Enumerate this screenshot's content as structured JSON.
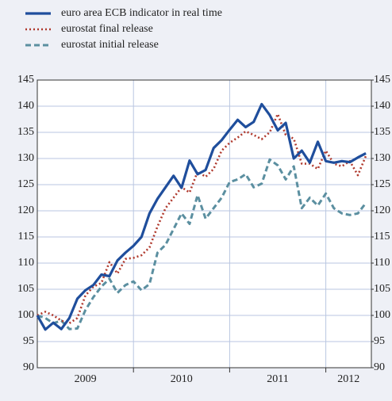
{
  "chart_data": {
    "type": "line",
    "categories": [
      null,
      null,
      null,
      null,
      null,
      null,
      null,
      null,
      null,
      null,
      null,
      null,
      null,
      null,
      null,
      null,
      null,
      null,
      null,
      null,
      null,
      null,
      null,
      null,
      null,
      null,
      null,
      null,
      null,
      null,
      null,
      null,
      null,
      null,
      null,
      null,
      null,
      null,
      null,
      null,
      null,
      null
    ],
    "year_labels": [
      "2009",
      "2010",
      "2011",
      "2012"
    ],
    "series": [
      {
        "name": "euro area ECB indicator in real time",
        "color": "#1f4e9c",
        "dash": "solid",
        "values": [
          100,
          97.3,
          98.6,
          97.4,
          99.5,
          103.2,
          104.8,
          105.8,
          107.8,
          107.5,
          110.5,
          112,
          113.3,
          115,
          119.5,
          122.3,
          124.5,
          126.7,
          124.4,
          129.6,
          127,
          127.8,
          132,
          133.5,
          135.5,
          137.4,
          136,
          137,
          140.4,
          138.3,
          135.4,
          136.8,
          130,
          131.5,
          129.2,
          133.2,
          129.5,
          129.2,
          129.5,
          129.3,
          130.2,
          131
        ]
      },
      {
        "name": "eurostat final release",
        "color": "#b03a2e",
        "dash": "dotted",
        "values": [
          100,
          100.7,
          100,
          99,
          98.5,
          99.5,
          103.8,
          105.5,
          106.2,
          110.2,
          108,
          110.8,
          111,
          111.5,
          113,
          117,
          120.5,
          122.5,
          124.5,
          123.5,
          127.5,
          126.5,
          128,
          131.5,
          133,
          134,
          135.2,
          134.5,
          133.7,
          135,
          138.5,
          134.5,
          133.8,
          129,
          129,
          128,
          131.5,
          129,
          128.5,
          129.5,
          126.8,
          130.5
        ]
      },
      {
        "name": "eurostat initial release",
        "color": "#5b8fa0",
        "dash": "dashed",
        "values": [
          100,
          99.5,
          98.5,
          99,
          97.4,
          97.5,
          101,
          103.5,
          105.5,
          107,
          104.3,
          105.8,
          106.5,
          104.8,
          106,
          112,
          113.5,
          116.5,
          119.5,
          117.5,
          123,
          118.5,
          120.5,
          122.5,
          125.5,
          126,
          127,
          124.5,
          125.2,
          129.8,
          128.7,
          126,
          128.5,
          120.5,
          122.5,
          121,
          123.3,
          120.5,
          119.5,
          119.2,
          119.5,
          121.5
        ]
      }
    ],
    "ylim": [
      90,
      145
    ],
    "yticks": [
      90,
      95,
      100,
      105,
      110,
      115,
      120,
      125,
      130,
      135,
      140,
      145
    ],
    "y2lim": [
      90,
      145
    ],
    "y2ticks": [
      90,
      95,
      100,
      105,
      110,
      115,
      120,
      125,
      130,
      135,
      140,
      145
    ],
    "grid": true,
    "legend": "top-left"
  }
}
